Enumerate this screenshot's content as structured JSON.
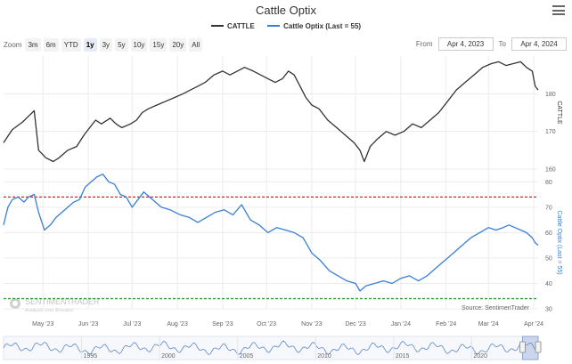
{
  "title": "Cattle Optix",
  "legend": [
    {
      "name": "CATTLE",
      "color": "#333333"
    },
    {
      "name": "Cattle Optix (Last = 55)",
      "color": "#3a7fd4"
    }
  ],
  "zoom": {
    "label": "Zoom",
    "buttons": [
      "3m",
      "6m",
      "YTD",
      "1y",
      "3y",
      "5y",
      "10y",
      "15y",
      "20y",
      "All"
    ],
    "active": "1y"
  },
  "range": {
    "from_label": "From",
    "from": "Apr 4, 2023",
    "to_label": "To",
    "to": "Apr 4, 2024"
  },
  "credit": "Source: SentimenTrader",
  "watermark": {
    "brand": "SENTIMENTRADER",
    "tagline": "Analysis over Emotion"
  },
  "colors": {
    "cattle": "#333333",
    "optix": "#3a7fd4",
    "upper_line": "#d62728",
    "lower_line": "#2ca02c"
  },
  "chart_data": {
    "type": "line",
    "x_axis": {
      "ticks": [
        "May '23",
        "Jun '23",
        "Jul '23",
        "Aug '23",
        "Sep '23",
        "Oct '23",
        "Nov '23",
        "Dec '23",
        "Jan '24",
        "Feb '24",
        "Mar '24",
        "Apr '24"
      ]
    },
    "panels": [
      {
        "series": "CATTLE",
        "axis_title": "CATTLE",
        "ylim": [
          160,
          190
        ],
        "yticks": [
          160,
          170,
          180
        ],
        "points": [
          [
            "2023-04-04",
            167
          ],
          [
            "2023-04-10",
            170.5
          ],
          [
            "2023-04-17",
            172.5
          ],
          [
            "2023-04-21",
            174
          ],
          [
            "2023-04-25",
            175.5
          ],
          [
            "2023-04-28",
            165
          ],
          [
            "2023-05-03",
            163
          ],
          [
            "2023-05-08",
            162
          ],
          [
            "2023-05-12",
            163
          ],
          [
            "2023-05-18",
            165
          ],
          [
            "2023-05-24",
            166
          ],
          [
            "2023-05-29",
            169
          ],
          [
            "2023-06-02",
            171
          ],
          [
            "2023-06-06",
            173
          ],
          [
            "2023-06-10",
            172
          ],
          [
            "2023-06-16",
            173.5
          ],
          [
            "2023-06-20",
            172
          ],
          [
            "2023-06-24",
            171
          ],
          [
            "2023-06-30",
            172
          ],
          [
            "2023-07-04",
            173
          ],
          [
            "2023-07-08",
            175
          ],
          [
            "2023-07-12",
            176
          ],
          [
            "2023-07-18",
            177
          ],
          [
            "2023-07-24",
            178
          ],
          [
            "2023-07-30",
            179
          ],
          [
            "2023-08-05",
            180
          ],
          [
            "2023-08-10",
            181
          ],
          [
            "2023-08-15",
            182
          ],
          [
            "2023-08-20",
            183
          ],
          [
            "2023-08-26",
            185
          ],
          [
            "2023-09-01",
            186
          ],
          [
            "2023-09-06",
            185
          ],
          [
            "2023-09-11",
            186
          ],
          [
            "2023-09-16",
            187
          ],
          [
            "2023-09-22",
            186
          ],
          [
            "2023-09-27",
            185
          ],
          [
            "2023-10-02",
            184
          ],
          [
            "2023-10-07",
            183
          ],
          [
            "2023-10-12",
            184
          ],
          [
            "2023-10-16",
            186
          ],
          [
            "2023-10-20",
            185
          ],
          [
            "2023-10-24",
            182
          ],
          [
            "2023-10-28",
            179
          ],
          [
            "2023-11-01",
            177
          ],
          [
            "2023-11-06",
            176
          ],
          [
            "2023-11-12",
            173
          ],
          [
            "2023-11-18",
            171
          ],
          [
            "2023-11-24",
            169
          ],
          [
            "2023-11-30",
            167
          ],
          [
            "2023-12-04",
            165
          ],
          [
            "2023-12-07",
            162
          ],
          [
            "2023-12-11",
            166
          ],
          [
            "2023-12-16",
            168
          ],
          [
            "2023-12-22",
            170
          ],
          [
            "2023-12-28",
            169
          ],
          [
            "2024-01-03",
            170
          ],
          [
            "2024-01-09",
            172
          ],
          [
            "2024-01-15",
            171
          ],
          [
            "2024-01-21",
            173
          ],
          [
            "2024-01-27",
            175
          ],
          [
            "2024-02-02",
            178
          ],
          [
            "2024-02-08",
            181
          ],
          [
            "2024-02-14",
            183
          ],
          [
            "2024-02-20",
            185
          ],
          [
            "2024-02-26",
            187
          ],
          [
            "2024-03-03",
            188
          ],
          [
            "2024-03-08",
            188.5
          ],
          [
            "2024-03-13",
            187.5
          ],
          [
            "2024-03-18",
            188
          ],
          [
            "2024-03-23",
            188.5
          ],
          [
            "2024-03-27",
            187
          ],
          [
            "2024-03-31",
            186
          ],
          [
            "2024-04-02",
            182
          ],
          [
            "2024-04-04",
            181
          ]
        ]
      },
      {
        "series": "Cattle Optix (Last = 55)",
        "axis_title": "Cattle Optix (Last = 55)",
        "ylim": [
          30,
          85
        ],
        "yticks": [
          30,
          40,
          50,
          60,
          70,
          80
        ],
        "reference_lines": [
          74,
          34
        ],
        "points": [
          [
            "2023-04-04",
            63
          ],
          [
            "2023-04-07",
            70
          ],
          [
            "2023-04-10",
            73
          ],
          [
            "2023-04-14",
            74
          ],
          [
            "2023-04-18",
            72
          ],
          [
            "2023-04-21",
            74
          ],
          [
            "2023-04-25",
            75
          ],
          [
            "2023-04-28",
            68
          ],
          [
            "2023-05-02",
            61
          ],
          [
            "2023-05-06",
            63
          ],
          [
            "2023-05-10",
            66
          ],
          [
            "2023-05-14",
            68
          ],
          [
            "2023-05-18",
            70
          ],
          [
            "2023-05-22",
            72
          ],
          [
            "2023-05-26",
            73
          ],
          [
            "2023-05-30",
            78
          ],
          [
            "2023-06-03",
            80
          ],
          [
            "2023-06-07",
            82
          ],
          [
            "2023-06-11",
            83
          ],
          [
            "2023-06-15",
            80
          ],
          [
            "2023-06-19",
            79
          ],
          [
            "2023-06-23",
            75
          ],
          [
            "2023-06-27",
            74
          ],
          [
            "2023-07-01",
            70
          ],
          [
            "2023-07-05",
            73
          ],
          [
            "2023-07-09",
            76
          ],
          [
            "2023-07-13",
            74
          ],
          [
            "2023-07-17",
            72
          ],
          [
            "2023-07-21",
            70
          ],
          [
            "2023-07-27",
            69
          ],
          [
            "2023-08-03",
            67
          ],
          [
            "2023-08-09",
            66
          ],
          [
            "2023-08-15",
            64
          ],
          [
            "2023-08-21",
            66
          ],
          [
            "2023-08-27",
            68
          ],
          [
            "2023-09-02",
            69
          ],
          [
            "2023-09-08",
            67
          ],
          [
            "2023-09-14",
            71
          ],
          [
            "2023-09-20",
            65
          ],
          [
            "2023-09-26",
            63
          ],
          [
            "2023-10-02",
            60
          ],
          [
            "2023-10-08",
            62
          ],
          [
            "2023-10-14",
            61
          ],
          [
            "2023-10-20",
            60
          ],
          [
            "2023-10-26",
            58
          ],
          [
            "2023-11-01",
            52
          ],
          [
            "2023-11-07",
            49
          ],
          [
            "2023-11-13",
            45
          ],
          [
            "2023-11-19",
            43
          ],
          [
            "2023-11-25",
            41
          ],
          [
            "2023-12-01",
            40
          ],
          [
            "2023-12-04",
            37
          ],
          [
            "2023-12-08",
            39
          ],
          [
            "2023-12-14",
            40
          ],
          [
            "2023-12-20",
            41
          ],
          [
            "2023-12-26",
            40
          ],
          [
            "2024-01-01",
            42
          ],
          [
            "2024-01-07",
            43
          ],
          [
            "2024-01-13",
            41
          ],
          [
            "2024-01-19",
            43
          ],
          [
            "2024-01-25",
            46
          ],
          [
            "2024-01-31",
            49
          ],
          [
            "2024-02-06",
            52
          ],
          [
            "2024-02-12",
            55
          ],
          [
            "2024-02-18",
            58
          ],
          [
            "2024-02-24",
            60
          ],
          [
            "2024-03-01",
            62
          ],
          [
            "2024-03-06",
            61
          ],
          [
            "2024-03-11",
            62
          ],
          [
            "2024-03-15",
            63
          ],
          [
            "2024-03-19",
            62
          ],
          [
            "2024-03-23",
            61
          ],
          [
            "2024-03-27",
            60
          ],
          [
            "2024-03-31",
            58
          ],
          [
            "2024-04-02",
            56
          ],
          [
            "2024-04-04",
            55
          ]
        ]
      }
    ],
    "navigator": {
      "ticks": [
        "1995",
        "2000",
        "2005",
        "2010",
        "2015",
        "2020"
      ],
      "selection": [
        "2023-04-04",
        "2024-04-04"
      ]
    }
  }
}
